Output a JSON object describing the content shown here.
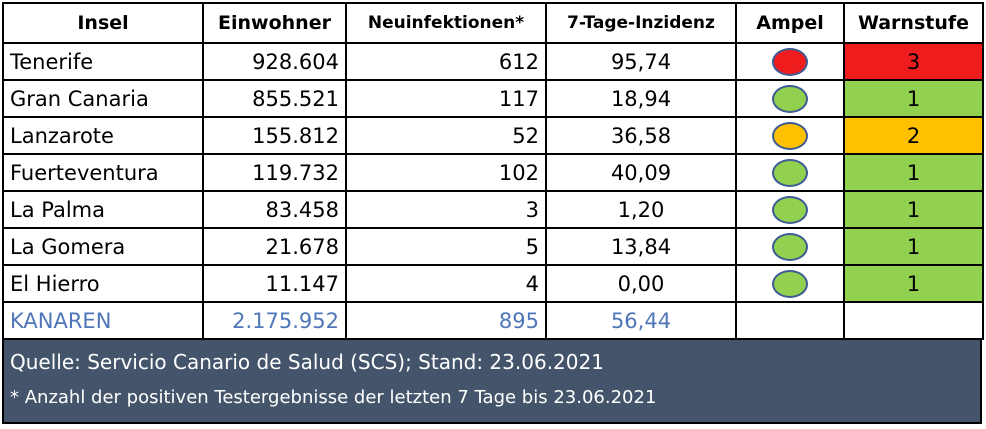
{
  "headers": {
    "insel": "Insel",
    "einwohner": "Einwohner",
    "neuinfektionen": "Neuinfektionen*",
    "inzidenz": "7-Tage-Inzidenz",
    "ampel": "Ampel",
    "warnstufe": "Warnstufe"
  },
  "rows": [
    {
      "insel": "Tenerife",
      "einwohner": "928.604",
      "neuinfektionen": "612",
      "inzidenz": "95,74",
      "ampel": "red",
      "warnstufe": "3"
    },
    {
      "insel": "Gran Canaria",
      "einwohner": "855.521",
      "neuinfektionen": "117",
      "inzidenz": "18,94",
      "ampel": "green",
      "warnstufe": "1"
    },
    {
      "insel": "Lanzarote",
      "einwohner": "155.812",
      "neuinfektionen": "52",
      "inzidenz": "36,58",
      "ampel": "orange",
      "warnstufe": "2"
    },
    {
      "insel": "Fuerteventura",
      "einwohner": "119.732",
      "neuinfektionen": "102",
      "inzidenz": "40,09",
      "ampel": "green",
      "warnstufe": "1"
    },
    {
      "insel": "La Palma",
      "einwohner": "83.458",
      "neuinfektionen": "3",
      "inzidenz": "1,20",
      "ampel": "green",
      "warnstufe": "1"
    },
    {
      "insel": "La Gomera",
      "einwohner": "21.678",
      "neuinfektionen": "5",
      "inzidenz": "13,84",
      "ampel": "green",
      "warnstufe": "1"
    },
    {
      "insel": "El Hierro",
      "einwohner": "11.147",
      "neuinfektionen": "4",
      "inzidenz": "0,00",
      "ampel": "green",
      "warnstufe": "1"
    }
  ],
  "total": {
    "insel": "KANAREN",
    "einwohner": "2.175.952",
    "neuinfektionen": "895",
    "inzidenz": "56,44"
  },
  "footer": {
    "source": "Quelle: Servicio Canario de Salud (SCS); Stand: 23.06.2021",
    "note": "* Anzahl der positiven Testergebnisse der letzten 7 Tage bis 23.06.2021"
  },
  "colors": {
    "red": "#ee1c1c",
    "green": "#92d050",
    "orange": "#ffc000",
    "total_text": "#4f76b8",
    "footer_bg": "#44546a"
  }
}
